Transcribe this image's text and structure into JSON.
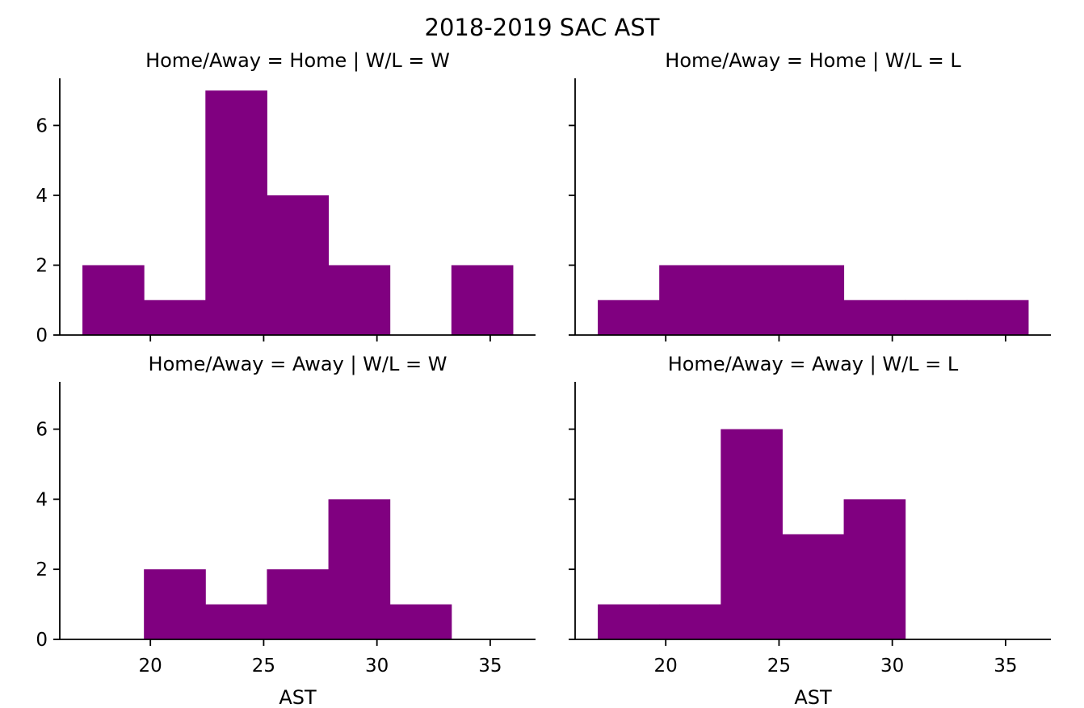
{
  "chart_data": {
    "type": "bar",
    "title": "2018-2019 SAC AST",
    "xlabel": "AST",
    "ylabel": "",
    "xlim": [
      16,
      37
    ],
    "ylim": [
      0,
      7.35
    ],
    "x_ticks": [
      20,
      25,
      30,
      35
    ],
    "y_ticks": [
      0,
      2,
      4,
      6
    ],
    "bin_edges": [
      17.0,
      19.7143,
      22.4286,
      25.1429,
      27.8571,
      30.5714,
      33.2857,
      36.0
    ],
    "color": "#800080",
    "grid": false,
    "legend": "none",
    "panels": [
      {
        "title": "Home/Away = Home | W/L = W",
        "counts": [
          2,
          1,
          7,
          4,
          2,
          0,
          2
        ],
        "show_x_ticks": false,
        "show_y_ticks": true,
        "show_xlabel": false
      },
      {
        "title": "Home/Away = Home | W/L = L",
        "counts": [
          1,
          2,
          2,
          2,
          1,
          1,
          1
        ],
        "show_x_ticks": false,
        "show_y_ticks": false,
        "show_xlabel": false
      },
      {
        "title": "Home/Away = Away | W/L = W",
        "counts": [
          0,
          2,
          1,
          2,
          4,
          1,
          0
        ],
        "show_x_ticks": true,
        "show_y_ticks": true,
        "show_xlabel": true
      },
      {
        "title": "Home/Away = Away | W/L = L",
        "counts": [
          1,
          1,
          6,
          3,
          4,
          0,
          0
        ],
        "show_x_ticks": true,
        "show_y_ticks": false,
        "show_xlabel": true
      }
    ]
  }
}
